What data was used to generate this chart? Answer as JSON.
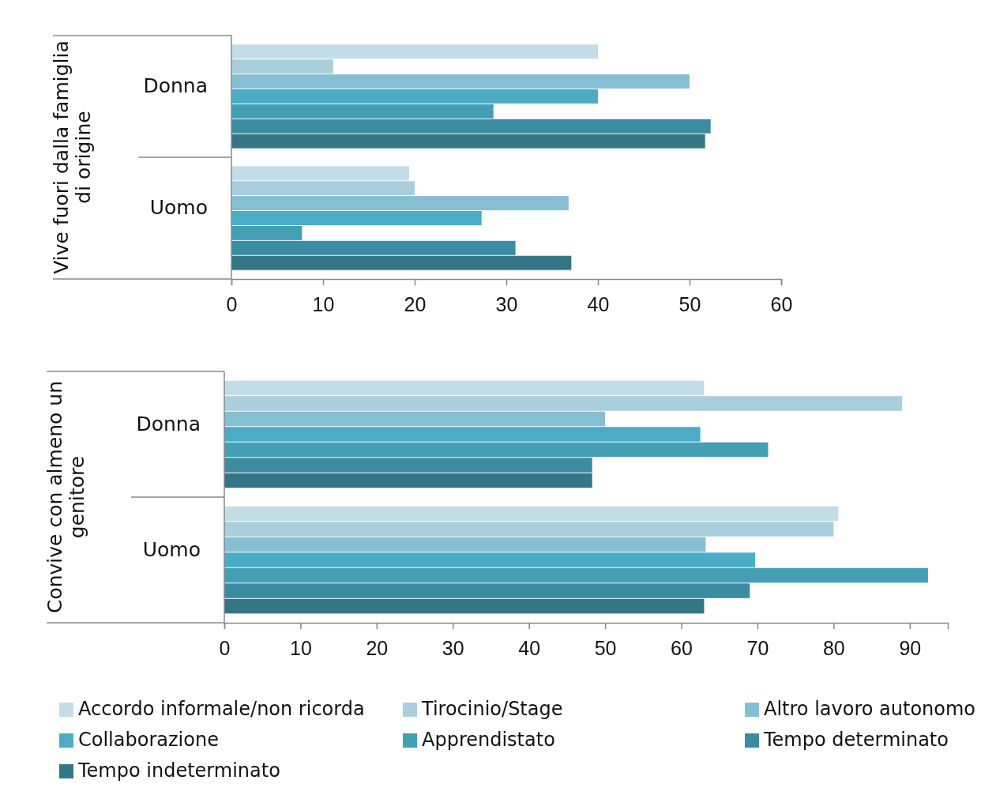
{
  "chart_data": [
    {
      "type": "bar",
      "orientation": "horizontal",
      "ylabel": "Vive fuori dalla famiglia di origine",
      "categories": [
        "Donna",
        "Uomo"
      ],
      "xlim": [
        0,
        60
      ],
      "xticks": [
        0,
        10,
        20,
        30,
        40,
        50,
        60
      ],
      "legend": false,
      "grid": false,
      "series": [
        {
          "color": "#c2dde6",
          "values": [
            40.0,
            19.4
          ]
        },
        {
          "color": "#a9cfdd",
          "values": [
            11.1,
            20.0
          ]
        },
        {
          "color": "#84c0d1",
          "values": [
            50.0,
            36.8
          ]
        },
        {
          "color": "#4bacc6",
          "values": [
            40.0,
            27.3
          ]
        },
        {
          "color": "#449fb5",
          "values": [
            28.6,
            7.7
          ]
        },
        {
          "color": "#3b8ba1",
          "values": [
            52.3,
            31.0
          ]
        },
        {
          "color": "#347686",
          "values": [
            51.7,
            37.1
          ]
        }
      ]
    },
    {
      "type": "bar",
      "orientation": "horizontal",
      "ylabel": "Convive con almeno un genitore",
      "categories": [
        "Donna",
        "Uomo"
      ],
      "xlim": [
        0,
        95
      ],
      "xticks": [
        0,
        10,
        20,
        30,
        40,
        50,
        60,
        70,
        80,
        90
      ],
      "legend": "bottom",
      "grid": false,
      "series": [
        {
          "name": "Accordo informale/non ricorda",
          "color": "#c2dde6",
          "values": [
            63.0,
            80.6
          ]
        },
        {
          "name": "Tirocinio/Stage",
          "color": "#a9cfdd",
          "values": [
            89.0,
            80.0
          ]
        },
        {
          "name": "Altro lavoro autonomo",
          "color": "#84c0d1",
          "values": [
            50.0,
            63.2
          ]
        },
        {
          "name": "Collaborazione",
          "color": "#4bacc6",
          "values": [
            62.5,
            69.7
          ]
        },
        {
          "name": "Apprendistato",
          "color": "#449fb5",
          "values": [
            71.4,
            92.4
          ]
        },
        {
          "name": "Tempo determinato",
          "color": "#3b8ba1",
          "values": [
            48.3,
            69.0
          ]
        },
        {
          "name": "Tempo indeterminato",
          "color": "#347686",
          "values": [
            48.3,
            63.0
          ]
        }
      ]
    }
  ]
}
